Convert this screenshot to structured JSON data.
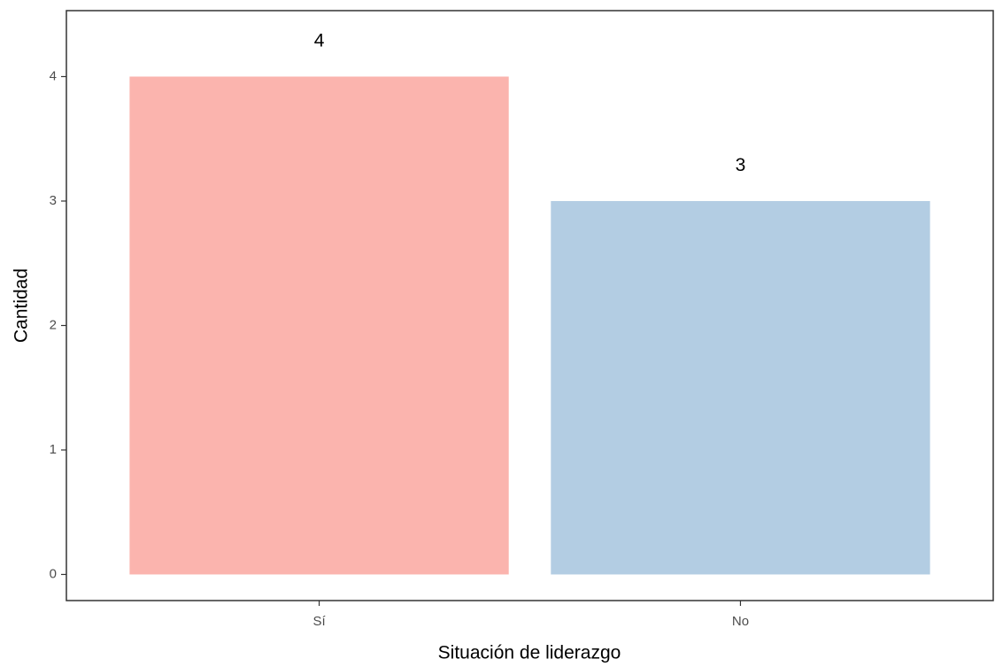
{
  "chart_data": {
    "type": "bar",
    "categories": [
      "Sí",
      "No"
    ],
    "values": [
      4,
      3
    ],
    "colors": [
      "#fbb4ae",
      "#b3cde3"
    ],
    "xlabel": "Situación de liderazgo",
    "ylabel": "Cantidad",
    "ylim": [
      -0.21,
      4.53
    ],
    "yticks": [
      0,
      1,
      2,
      3,
      4
    ],
    "grid": false
  }
}
